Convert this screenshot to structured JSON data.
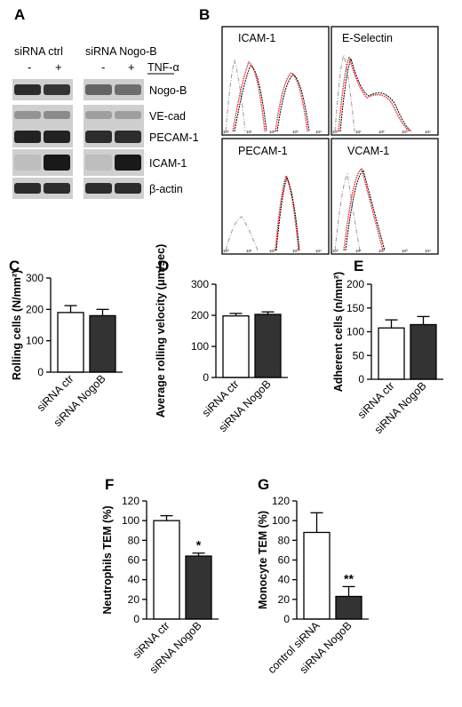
{
  "panels": {
    "A": {
      "letter": "A",
      "group_labels": [
        "siRNA ctrl",
        "siRNA Nogo-B"
      ],
      "treatment_label": "TNF-α",
      "lane_signs": [
        "-",
        "+",
        "-",
        "+"
      ],
      "rows": [
        {
          "label": "Nogo-B",
          "intensity": [
            0.85,
            0.8,
            0.55,
            0.5
          ]
        },
        {
          "label": "VE-cad",
          "intensity": [
            0.3,
            0.35,
            0.25,
            0.25
          ]
        },
        {
          "label": "PECAM-1",
          "intensity": [
            0.9,
            0.9,
            0.85,
            0.85
          ]
        },
        {
          "label": "ICAM-1",
          "intensity": [
            0.08,
            0.95,
            0.08,
            0.95
          ]
        },
        {
          "label": "β-actin",
          "intensity": [
            0.85,
            0.85,
            0.85,
            0.85
          ]
        }
      ]
    },
    "B": {
      "letter": "B",
      "histograms": [
        {
          "title": "ICAM-1",
          "tick_labels": [
            "10⁰",
            "10¹",
            "10²",
            "10³",
            "10⁴"
          ]
        },
        {
          "title": "E-Selectin",
          "tick_labels": [
            "10⁰",
            "10¹",
            "10²",
            "10³",
            "10⁴"
          ]
        },
        {
          "title": "PECAM-1",
          "tick_labels": [
            "10⁰",
            "10¹",
            "10²",
            "10³",
            "10⁴"
          ]
        },
        {
          "title": "VCAM-1",
          "tick_labels": [
            "10⁰",
            "10¹",
            "10²",
            "10³",
            "10⁴"
          ]
        }
      ]
    }
  },
  "colors": {
    "ctrl_bar": "#ffffff",
    "nogob_bar": "#333333",
    "flow_red": "#e8262b",
    "ink": "#000000"
  },
  "chart_data": [
    {
      "panel": "C",
      "type": "bar",
      "categories": [
        "siRNA ctr",
        "siRNA NogoB"
      ],
      "values": [
        190,
        180
      ],
      "errors": [
        22,
        20
      ],
      "ylabel": "Rolling cells (N/mm²)",
      "ylim": [
        0,
        300
      ],
      "yticks": [
        0,
        100,
        200,
        300
      ],
      "significance": [
        "",
        ""
      ]
    },
    {
      "panel": "D",
      "type": "bar",
      "categories": [
        "siRNA ctr",
        "siRNA NogoB"
      ],
      "values": [
        198,
        203
      ],
      "errors": [
        8,
        8
      ],
      "ylabel": "Average rolling velocity (μm/sec)",
      "ylim": [
        0,
        300
      ],
      "yticks": [
        0,
        100,
        200,
        300
      ],
      "significance": [
        "",
        ""
      ]
    },
    {
      "panel": "E",
      "type": "bar",
      "categories": [
        "siRNA ctr",
        "siRNA NogoB"
      ],
      "values": [
        108,
        115
      ],
      "errors": [
        17,
        17
      ],
      "ylabel": "Adherent cells (n/mm²)",
      "ylim": [
        0,
        200
      ],
      "yticks": [
        0,
        50,
        100,
        150,
        200
      ],
      "significance": [
        "",
        ""
      ]
    },
    {
      "panel": "F",
      "type": "bar",
      "categories": [
        "siRNA ctr",
        "siRNA NogoB"
      ],
      "values": [
        100,
        64
      ],
      "errors": [
        5,
        3
      ],
      "ylabel": "Neutrophils TEM (%)",
      "ylim": [
        0,
        120
      ],
      "yticks": [
        0,
        20,
        40,
        60,
        80,
        100,
        120
      ],
      "significance": [
        "",
        "*"
      ]
    },
    {
      "panel": "G",
      "type": "bar",
      "categories": [
        "control siRNA",
        "siRNA NogoB"
      ],
      "values": [
        88,
        23
      ],
      "errors": [
        20,
        10
      ],
      "ylabel": "Monocyte TEM (%)",
      "ylim": [
        0,
        120
      ],
      "yticks": [
        0,
        20,
        40,
        60,
        80,
        100,
        120
      ],
      "significance": [
        "",
        "**"
      ]
    }
  ]
}
